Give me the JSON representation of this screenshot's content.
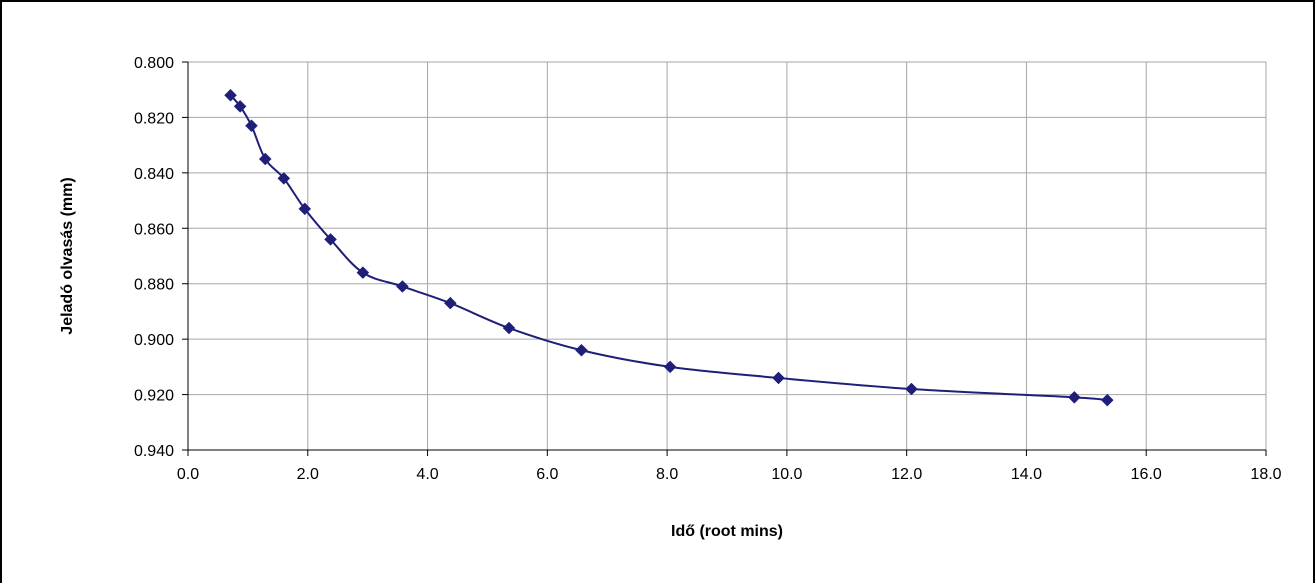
{
  "chart_data": {
    "type": "line",
    "title": "",
    "xlabel": "Idő (root mins)",
    "ylabel": "Jeladó olvasás (mm)",
    "xlim": [
      0,
      18
    ],
    "ylim": [
      0.8,
      0.94
    ],
    "y_reversed": true,
    "grid": true,
    "legend": "none",
    "x_ticks": [
      "0.0",
      "2.0",
      "4.0",
      "6.0",
      "8.0",
      "10.0",
      "12.0",
      "14.0",
      "16.0",
      "18.0"
    ],
    "y_ticks": [
      "0.800",
      "0.820",
      "0.840",
      "0.860",
      "0.880",
      "0.900",
      "0.920",
      "0.940"
    ],
    "colors": {
      "series": "#1f1f7a",
      "grid": "#a6a6a6",
      "axis": "#000000"
    },
    "marker": "diamond",
    "series": [
      {
        "x": [
          0.71,
          0.87,
          1.06,
          1.29,
          1.6,
          1.95,
          2.38,
          2.92,
          3.58,
          4.38,
          5.36,
          6.57,
          8.05,
          9.86,
          12.08,
          14.8,
          15.35
        ],
        "y": [
          0.812,
          0.816,
          0.823,
          0.835,
          0.842,
          0.853,
          0.864,
          0.876,
          0.881,
          0.887,
          0.896,
          0.904,
          0.91,
          0.914,
          0.918,
          0.921,
          0.922
        ]
      }
    ]
  }
}
